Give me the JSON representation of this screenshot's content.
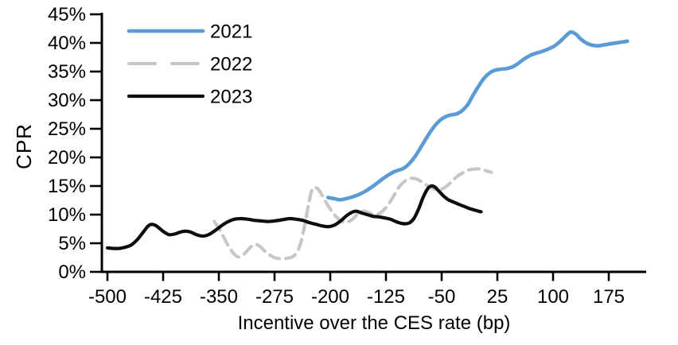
{
  "chart_data": {
    "type": "line",
    "title": "",
    "xlabel": "Incentive over the CES rate (bp)",
    "ylabel": "CPR",
    "grid": false,
    "legend_position": "top-left",
    "x_axis": {
      "min": -500,
      "max": 225,
      "ticks": [
        -500,
        -425,
        -350,
        -275,
        -200,
        -125,
        -50,
        25,
        100,
        175
      ]
    },
    "y_axis": {
      "min": 0,
      "max": 45,
      "ticks": [
        0,
        5,
        10,
        15,
        20,
        25,
        30,
        35,
        40,
        45
      ],
      "suffix": "%"
    },
    "series": [
      {
        "name": "2021",
        "color": "#5B9BD5",
        "style": "solid",
        "stroke_width": 4.6,
        "points": [
          [
            -203,
            13
          ],
          [
            -195,
            12.8
          ],
          [
            -187,
            12.6
          ],
          [
            -178,
            12.8
          ],
          [
            -170,
            13.1
          ],
          [
            -160,
            13.6
          ],
          [
            -150,
            14.3
          ],
          [
            -140,
            15.2
          ],
          [
            -130,
            16.2
          ],
          [
            -122,
            16.9
          ],
          [
            -114,
            17.5
          ],
          [
            -107,
            17.8
          ],
          [
            -100,
            18.2
          ],
          [
            -93,
            19
          ],
          [
            -85,
            20.3
          ],
          [
            -77,
            22
          ],
          [
            -68,
            23.9
          ],
          [
            -60,
            25.4
          ],
          [
            -52,
            26.5
          ],
          [
            -45,
            27.1
          ],
          [
            -38,
            27.4
          ],
          [
            -30,
            27.6
          ],
          [
            -23,
            28.1
          ],
          [
            -15,
            29.2
          ],
          [
            -8,
            30.8
          ],
          [
            0,
            32.5
          ],
          [
            7,
            33.8
          ],
          [
            14,
            34.7
          ],
          [
            21,
            35.2
          ],
          [
            29,
            35.4
          ],
          [
            37,
            35.5
          ],
          [
            45,
            35.8
          ],
          [
            53,
            36.4
          ],
          [
            61,
            37.2
          ],
          [
            69,
            37.8
          ],
          [
            77,
            38.2
          ],
          [
            85,
            38.5
          ],
          [
            93,
            38.9
          ],
          [
            101,
            39.4
          ],
          [
            109,
            40.2
          ],
          [
            117,
            41.2
          ],
          [
            124,
            41.9
          ],
          [
            131,
            41.5
          ],
          [
            138,
            40.6
          ],
          [
            146,
            39.9
          ],
          [
            153,
            39.6
          ],
          [
            161,
            39.5
          ],
          [
            170,
            39.7
          ],
          [
            180,
            39.9
          ],
          [
            200,
            40.3
          ]
        ]
      },
      {
        "name": "2022",
        "color": "#C7C7C7",
        "style": "dashed",
        "stroke_width": 4.2,
        "points": [
          [
            -356,
            8.8
          ],
          [
            -350,
            7.6
          ],
          [
            -344,
            6.2
          ],
          [
            -337,
            4.5
          ],
          [
            -330,
            3.2
          ],
          [
            -323,
            2.6
          ],
          [
            -316,
            3.1
          ],
          [
            -309,
            4.1
          ],
          [
            -302,
            4.8
          ],
          [
            -295,
            4.5
          ],
          [
            -288,
            3.6
          ],
          [
            -281,
            2.9
          ],
          [
            -273,
            2.4
          ],
          [
            -265,
            2.3
          ],
          [
            -257,
            2.4
          ],
          [
            -250,
            2.7
          ],
          [
            -244,
            3.6
          ],
          [
            -239,
            5.4
          ],
          [
            -234,
            8.4
          ],
          [
            -229,
            11.9
          ],
          [
            -225,
            14.2
          ],
          [
            -221,
            14.8
          ],
          [
            -216,
            14.4
          ],
          [
            -211,
            13.4
          ],
          [
            -205,
            12
          ],
          [
            -198,
            10.6
          ],
          [
            -191,
            9.5
          ],
          [
            -184,
            8.8
          ],
          [
            -177,
            8.7
          ],
          [
            -170,
            9.2
          ],
          [
            -163,
            10.1
          ],
          [
            -156,
            10.6
          ],
          [
            -149,
            10.4
          ],
          [
            -142,
            10
          ],
          [
            -135,
            10.1
          ],
          [
            -128,
            10.8
          ],
          [
            -121,
            11.9
          ],
          [
            -114,
            13.4
          ],
          [
            -107,
            14.9
          ],
          [
            -100,
            15.8
          ],
          [
            -93,
            16.3
          ],
          [
            -86,
            16.3
          ],
          [
            -79,
            15.9
          ],
          [
            -72,
            15.3
          ],
          [
            -65,
            14.8
          ],
          [
            -58,
            14.4
          ],
          [
            -51,
            14.4
          ],
          [
            -44,
            14.9
          ],
          [
            -37,
            15.7
          ],
          [
            -30,
            16.6
          ],
          [
            -23,
            17.2
          ],
          [
            -16,
            17.7
          ],
          [
            -9,
            17.9
          ],
          [
            -2,
            18
          ],
          [
            5,
            17.9
          ],
          [
            11,
            17.6
          ],
          [
            17,
            17.4
          ]
        ]
      },
      {
        "name": "2023",
        "color": "#0d0d0d",
        "style": "solid",
        "stroke_width": 4.2,
        "points": [
          [
            -500,
            4.2
          ],
          [
            -492,
            4.1
          ],
          [
            -484,
            4.1
          ],
          [
            -476,
            4.3
          ],
          [
            -468,
            4.7
          ],
          [
            -460,
            5.6
          ],
          [
            -452,
            6.9
          ],
          [
            -446,
            7.9
          ],
          [
            -441,
            8.3
          ],
          [
            -435,
            8.1
          ],
          [
            -429,
            7.5
          ],
          [
            -423,
            6.9
          ],
          [
            -417,
            6.5
          ],
          [
            -410,
            6.6
          ],
          [
            -403,
            6.9
          ],
          [
            -396,
            7.1
          ],
          [
            -389,
            7
          ],
          [
            -382,
            6.6
          ],
          [
            -375,
            6.3
          ],
          [
            -368,
            6.3
          ],
          [
            -361,
            6.7
          ],
          [
            -353,
            7.4
          ],
          [
            -345,
            8.2
          ],
          [
            -337,
            8.8
          ],
          [
            -329,
            9.2
          ],
          [
            -320,
            9.3
          ],
          [
            -311,
            9.2
          ],
          [
            -302,
            9
          ],
          [
            -293,
            8.9
          ],
          [
            -284,
            8.8
          ],
          [
            -275,
            8.9
          ],
          [
            -265,
            9.1
          ],
          [
            -255,
            9.3
          ],
          [
            -246,
            9.2
          ],
          [
            -237,
            9
          ],
          [
            -228,
            8.6
          ],
          [
            -219,
            8.3
          ],
          [
            -210,
            8
          ],
          [
            -202,
            7.9
          ],
          [
            -194,
            8.2
          ],
          [
            -186,
            8.9
          ],
          [
            -178,
            9.8
          ],
          [
            -171,
            10.4
          ],
          [
            -165,
            10.6
          ],
          [
            -158,
            10.3
          ],
          [
            -150,
            10
          ],
          [
            -142,
            9.7
          ],
          [
            -134,
            9.6
          ],
          [
            -126,
            9.4
          ],
          [
            -119,
            9.2
          ],
          [
            -112,
            8.8
          ],
          [
            -105,
            8.5
          ],
          [
            -99,
            8.4
          ],
          [
            -93,
            8.6
          ],
          [
            -87,
            9.4
          ],
          [
            -81,
            11
          ],
          [
            -75,
            13
          ],
          [
            -69,
            14.5
          ],
          [
            -64,
            15
          ],
          [
            -59,
            14.8
          ],
          [
            -53,
            14
          ],
          [
            -47,
            13.2
          ],
          [
            -41,
            12.6
          ],
          [
            -34,
            12.2
          ],
          [
            -27,
            11.8
          ],
          [
            -19,
            11.4
          ],
          [
            -11,
            11
          ],
          [
            -3,
            10.7
          ],
          [
            3,
            10.5
          ]
        ]
      }
    ]
  }
}
